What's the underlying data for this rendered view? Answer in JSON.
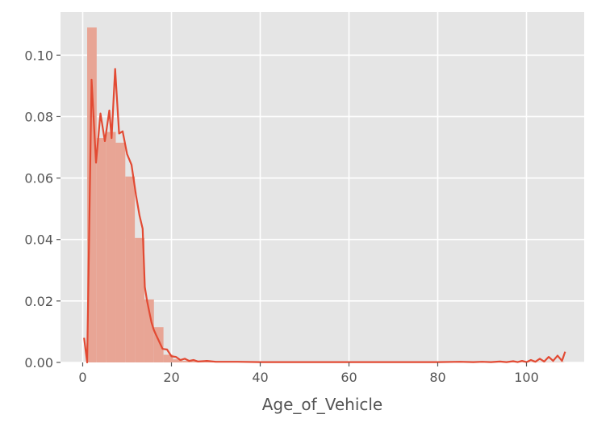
{
  "chart_data": {
    "type": "bar",
    "title": "",
    "xlabel": "Age_of_Vehicle",
    "ylabel": "",
    "xlim": [
      -5,
      113
    ],
    "ylim": [
      0,
      0.114
    ],
    "grid": true,
    "x_ticks": [
      0,
      20,
      40,
      60,
      80,
      100
    ],
    "y_ticks": [
      0.0,
      0.02,
      0.04,
      0.06,
      0.08,
      0.1
    ],
    "x_tick_labels": [
      "0",
      "20",
      "40",
      "60",
      "80",
      "100"
    ],
    "y_tick_labels": [
      "0.00",
      "0.02",
      "0.04",
      "0.06",
      "0.08",
      "0.10"
    ],
    "colors": {
      "background": "#e5e5e5",
      "grid": "#ffffff",
      "bars": "#e8a595",
      "line": "#e24a33",
      "text": "#555555"
    },
    "histogram": {
      "bin_edges": [
        1.0,
        3.15,
        5.3,
        7.45,
        9.6,
        11.75,
        13.9,
        16.05,
        18.2,
        20.35,
        22.5,
        24.65,
        26.8,
        28.95,
        31.1,
        33.25,
        35.4,
        37.55,
        39.7,
        41.85,
        44.0,
        46.15,
        48.3,
        50.45,
        52.6,
        54.75,
        56.9,
        59.05,
        61.2,
        63.35,
        65.5,
        67.65,
        69.8,
        71.95,
        74.1,
        76.25,
        78.4,
        80.55,
        82.7,
        84.85,
        87.0,
        89.15,
        91.3,
        93.45,
        95.6,
        97.75,
        99.9,
        102.05,
        104.2,
        106.35,
        108.5
      ],
      "density": [
        0.109,
        0.073,
        0.075,
        0.0715,
        0.0605,
        0.0405,
        0.0205,
        0.0115,
        0.0025,
        0.001,
        0.0005,
        0.0004,
        0.0003,
        0.0002,
        0.0002,
        0.0001,
        0.0001,
        0.0001,
        0.0001,
        0.0001,
        0.0001,
        0.0001,
        0.0001,
        0.0001,
        0.0001,
        0.0001,
        0.0001,
        0.0001,
        0.0001,
        0.0001,
        0.0001,
        0.0001,
        0.0001,
        0.0001,
        0.0001,
        0.0001,
        0.0001,
        0.0001,
        0.0001,
        0.0001,
        0.0001,
        0.0001,
        0.0001,
        0.0001,
        0.0001,
        0.0001,
        0.0001,
        0.0001,
        0.0001,
        0.0001
      ]
    },
    "kde": {
      "x": [
        0.3,
        1.0,
        2.0,
        3.0,
        4.0,
        5.0,
        6.0,
        6.5,
        7.3,
        8.2,
        9.0,
        10.0,
        11.0,
        12.0,
        12.8,
        13.5,
        14.0,
        14.5,
        15.0,
        15.5,
        16.0,
        16.5,
        17.0,
        18.0,
        19.0,
        20.0,
        21.0,
        22.0,
        23.0,
        24.0,
        25.0,
        26.0,
        28.0,
        30.0,
        35.0,
        40.0,
        50.0,
        60.0,
        70.0,
        80.0,
        85.0,
        88.0,
        90.0,
        92.0,
        94.0,
        95.5,
        97.0,
        98.0,
        99.0,
        100.0,
        101.0,
        102.0,
        103.0,
        104.0,
        105.0,
        106.0,
        107.0,
        108.0,
        108.7
      ],
      "y": [
        0.008,
        0.0,
        0.092,
        0.065,
        0.081,
        0.072,
        0.082,
        0.073,
        0.0955,
        0.0745,
        0.0752,
        0.0678,
        0.0643,
        0.0545,
        0.0478,
        0.0435,
        0.0245,
        0.02,
        0.0165,
        0.013,
        0.0107,
        0.009,
        0.0075,
        0.0044,
        0.0042,
        0.002,
        0.0018,
        0.0008,
        0.0012,
        0.0005,
        0.0008,
        0.0003,
        0.0005,
        0.0002,
        0.0002,
        0.0001,
        0.0001,
        0.0001,
        0.0001,
        0.0001,
        0.0002,
        0.0001,
        0.0002,
        0.0001,
        0.0003,
        0.0001,
        0.0004,
        0.0001,
        0.0005,
        0.0001,
        0.0008,
        0.0002,
        0.0012,
        0.0003,
        0.0018,
        0.0005,
        0.0022,
        0.0005,
        0.0035
      ]
    }
  }
}
